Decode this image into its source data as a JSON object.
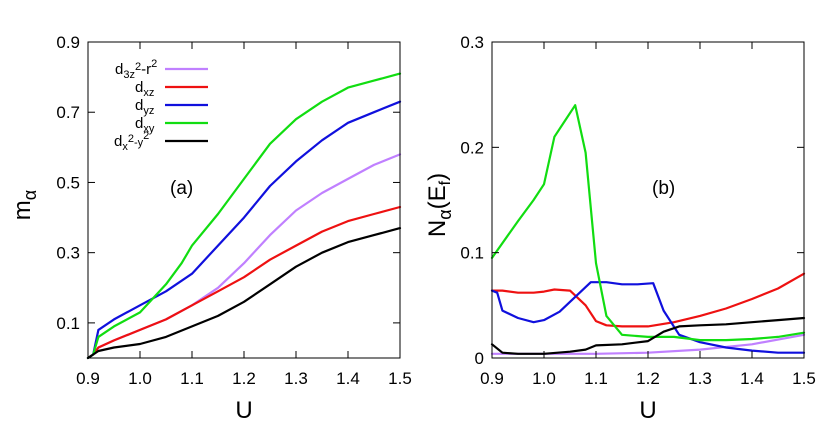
{
  "colors": {
    "d3z2": "#c080ff",
    "dxz": "#ee1111",
    "dyz": "#1010dd",
    "dxy": "#11dd11",
    "dx2y2": "#000000"
  },
  "chart_data": [
    {
      "panel": "left",
      "type": "line",
      "annotation": "(a)",
      "xlabel": "U",
      "ylabel": "m_α",
      "xlim": [
        0.9,
        1.5
      ],
      "ylim": [
        0.0,
        0.9
      ],
      "xticks": [
        "0.9",
        "1.0",
        "1.1",
        "1.2",
        "1.3",
        "1.4",
        "1.5"
      ],
      "yticks": [
        "0.1",
        "0.3",
        "0.5",
        "0.7",
        "0.9"
      ],
      "legend_position": "top-left",
      "series": [
        {
          "name": "d3z²-r²",
          "color_key": "d3z2",
          "x": [
            0.9,
            0.91,
            0.92,
            0.95,
            1.0,
            1.05,
            1.1,
            1.15,
            1.2,
            1.25,
            1.3,
            1.35,
            1.4,
            1.45,
            1.5
          ],
          "y": [
            0.0,
            0.01,
            0.03,
            0.05,
            0.08,
            0.11,
            0.15,
            0.2,
            0.27,
            0.35,
            0.42,
            0.47,
            0.51,
            0.55,
            0.58
          ]
        },
        {
          "name": "dxz",
          "color_key": "dxz",
          "x": [
            0.9,
            0.91,
            0.92,
            0.95,
            1.0,
            1.05,
            1.1,
            1.15,
            1.2,
            1.25,
            1.3,
            1.35,
            1.4,
            1.45,
            1.5
          ],
          "y": [
            0.0,
            0.01,
            0.03,
            0.05,
            0.08,
            0.11,
            0.15,
            0.19,
            0.23,
            0.28,
            0.32,
            0.36,
            0.39,
            0.41,
            0.43
          ]
        },
        {
          "name": "dyz",
          "color_key": "dyz",
          "x": [
            0.9,
            0.91,
            0.92,
            0.95,
            1.0,
            1.05,
            1.1,
            1.15,
            1.2,
            1.25,
            1.3,
            1.35,
            1.4,
            1.45,
            1.5
          ],
          "y": [
            0.0,
            0.01,
            0.08,
            0.11,
            0.15,
            0.19,
            0.24,
            0.32,
            0.4,
            0.49,
            0.56,
            0.62,
            0.67,
            0.7,
            0.73
          ]
        },
        {
          "name": "dxy",
          "color_key": "dxy",
          "x": [
            0.9,
            0.91,
            0.92,
            0.95,
            1.0,
            1.05,
            1.08,
            1.1,
            1.15,
            1.2,
            1.25,
            1.3,
            1.35,
            1.4,
            1.45,
            1.5
          ],
          "y": [
            0.0,
            0.01,
            0.06,
            0.09,
            0.13,
            0.21,
            0.27,
            0.32,
            0.41,
            0.51,
            0.61,
            0.68,
            0.73,
            0.77,
            0.79,
            0.81
          ]
        },
        {
          "name": "dx²-y²",
          "color_key": "dx2y2",
          "x": [
            0.9,
            0.91,
            0.92,
            0.95,
            1.0,
            1.05,
            1.1,
            1.15,
            1.2,
            1.25,
            1.3,
            1.35,
            1.4,
            1.45,
            1.5
          ],
          "y": [
            0.0,
            0.01,
            0.02,
            0.03,
            0.04,
            0.06,
            0.09,
            0.12,
            0.16,
            0.21,
            0.26,
            0.3,
            0.33,
            0.35,
            0.37
          ]
        }
      ]
    },
    {
      "panel": "right",
      "type": "line",
      "annotation": "(b)",
      "xlabel": "U",
      "ylabel": "N_α(E_f)",
      "xlim": [
        0.9,
        1.5
      ],
      "ylim": [
        0.0,
        0.3
      ],
      "xticks": [
        "0.9",
        "1.0",
        "1.1",
        "1.2",
        "1.3",
        "1.4",
        "1.5"
      ],
      "yticks": [
        "0",
        "0.1",
        "0.2",
        "0.3"
      ],
      "series": [
        {
          "color_key": "d3z2",
          "x": [
            0.9,
            1.0,
            1.1,
            1.2,
            1.3,
            1.4,
            1.5
          ],
          "y": [
            0.004,
            0.004,
            0.004,
            0.005,
            0.008,
            0.013,
            0.022
          ]
        },
        {
          "color_key": "dxz",
          "x": [
            0.9,
            0.92,
            0.95,
            0.98,
            1.0,
            1.02,
            1.05,
            1.08,
            1.1,
            1.12,
            1.15,
            1.2,
            1.25,
            1.3,
            1.35,
            1.4,
            1.45,
            1.5
          ],
          "y": [
            0.064,
            0.064,
            0.062,
            0.062,
            0.063,
            0.065,
            0.064,
            0.05,
            0.035,
            0.031,
            0.03,
            0.03,
            0.034,
            0.04,
            0.047,
            0.056,
            0.066,
            0.08
          ]
        },
        {
          "color_key": "dyz",
          "x": [
            0.9,
            0.91,
            0.92,
            0.95,
            0.98,
            1.0,
            1.03,
            1.06,
            1.09,
            1.12,
            1.15,
            1.18,
            1.21,
            1.23,
            1.26,
            1.3,
            1.35,
            1.4,
            1.45,
            1.5
          ],
          "y": [
            0.064,
            0.062,
            0.045,
            0.038,
            0.034,
            0.036,
            0.044,
            0.058,
            0.072,
            0.072,
            0.07,
            0.07,
            0.071,
            0.045,
            0.022,
            0.015,
            0.01,
            0.007,
            0.005,
            0.005
          ]
        },
        {
          "color_key": "dxy",
          "x": [
            0.9,
            0.95,
            0.98,
            1.0,
            1.02,
            1.04,
            1.06,
            1.08,
            1.1,
            1.12,
            1.15,
            1.2,
            1.25,
            1.3,
            1.35,
            1.4,
            1.45,
            1.5
          ],
          "y": [
            0.095,
            0.13,
            0.15,
            0.165,
            0.21,
            0.225,
            0.24,
            0.195,
            0.09,
            0.04,
            0.022,
            0.02,
            0.02,
            0.017,
            0.017,
            0.018,
            0.02,
            0.024
          ]
        },
        {
          "color_key": "dx2y2",
          "x": [
            0.9,
            0.92,
            0.95,
            1.0,
            1.05,
            1.08,
            1.1,
            1.15,
            1.2,
            1.23,
            1.26,
            1.3,
            1.35,
            1.4,
            1.45,
            1.5
          ],
          "y": [
            0.013,
            0.005,
            0.004,
            0.004,
            0.006,
            0.008,
            0.012,
            0.013,
            0.016,
            0.025,
            0.03,
            0.031,
            0.032,
            0.034,
            0.036,
            0.038
          ]
        }
      ]
    }
  ]
}
